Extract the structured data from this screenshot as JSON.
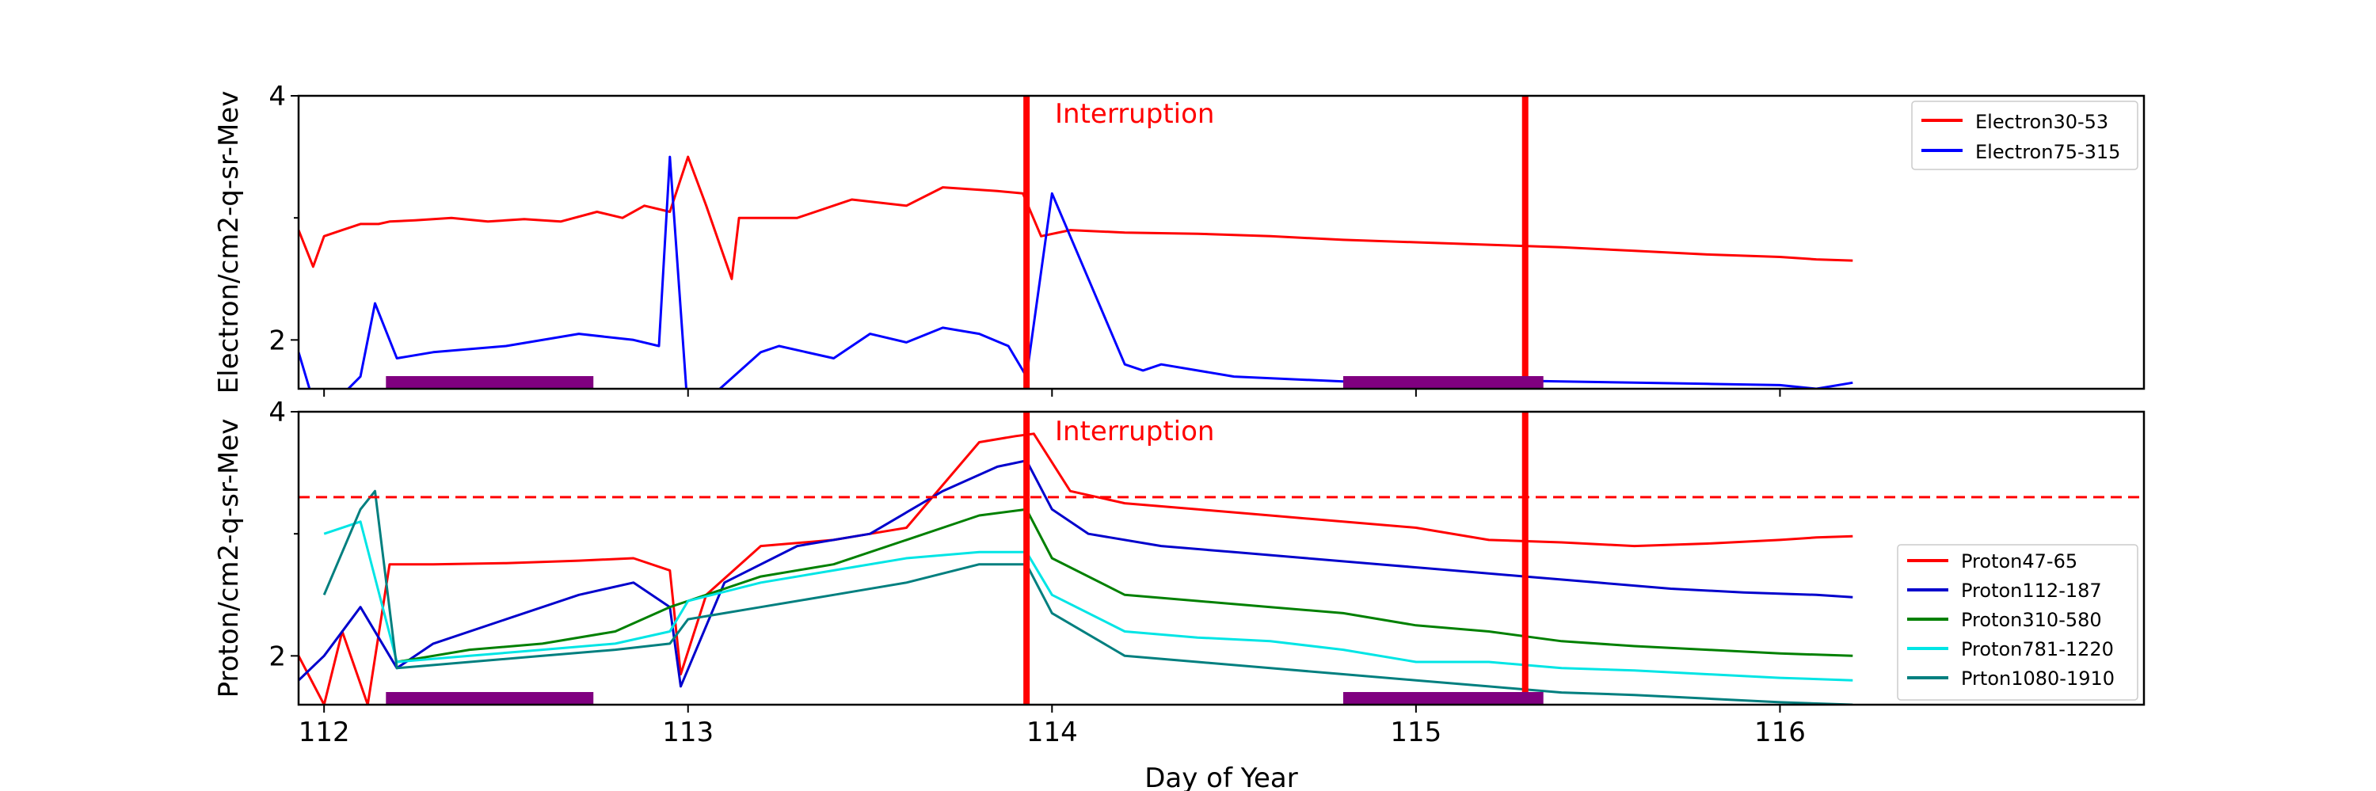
{
  "chart_data": {
    "type": "line",
    "xlabel": "Day of Year",
    "xlim": [
      111.93,
      117.0
    ],
    "xticks": [
      112,
      113,
      114,
      115,
      116
    ],
    "colors": {
      "Electron30-53": "#ff0000",
      "Electron75-315": "#0000ff",
      "Proton47-65": "#ff0000",
      "Proton112-187": "#0000cc",
      "Proton310-580": "#008000",
      "Proton781-1220": "#00e5e5",
      "Prton1080-1910": "#007f7f",
      "interruption": "#ff0000",
      "bar": "#800080"
    },
    "interruption_lines": [
      113.93,
      115.3
    ],
    "bars": [
      [
        112.17,
        112.74
      ],
      [
        114.8,
        115.35
      ]
    ],
    "panels": [
      {
        "id": "electron",
        "ylabel": "Electron/cm2-q-sr-Mev",
        "ylim": [
          1.6,
          4
        ],
        "yticks": [
          2,
          4
        ],
        "annotation": "Interruption",
        "legend_position": "upper-right",
        "series": [
          {
            "name": "Electron30-53",
            "x": [
              111.93,
              111.97,
              112.0,
              112.05,
              112.1,
              112.15,
              112.18,
              112.25,
              112.35,
              112.45,
              112.55,
              112.65,
              112.75,
              112.82,
              112.88,
              112.95,
              113.0,
              113.05,
              113.12,
              113.14,
              113.18,
              113.3,
              113.45,
              113.6,
              113.7,
              113.85,
              113.92,
              113.97,
              114.05,
              114.2,
              114.4,
              114.6,
              114.8,
              115.0,
              115.2,
              115.4,
              115.6,
              115.8,
              116.0,
              116.1,
              116.2
            ],
            "y": [
              2.9,
              2.6,
              2.85,
              2.9,
              2.95,
              2.95,
              2.97,
              2.98,
              3.0,
              2.97,
              2.99,
              2.97,
              3.05,
              3.0,
              3.1,
              3.05,
              3.5,
              3.1,
              2.5,
              3.0,
              3.0,
              3.0,
              3.15,
              3.1,
              3.25,
              3.22,
              3.2,
              2.85,
              2.9,
              2.88,
              2.87,
              2.85,
              2.82,
              2.8,
              2.78,
              2.76,
              2.73,
              2.7,
              2.68,
              2.66,
              2.65
            ]
          },
          {
            "name": "Electron75-315",
            "x": [
              111.93,
              111.96,
              112.0,
              112.05,
              112.1,
              112.14,
              112.2,
              112.3,
              112.5,
              112.7,
              112.85,
              112.92,
              112.95,
              113.0,
              113.05,
              113.2,
              113.25,
              113.4,
              113.5,
              113.6,
              113.7,
              113.8,
              113.88,
              113.93,
              114.0,
              114.1,
              114.2,
              114.25,
              114.3,
              114.5,
              114.8,
              115.0,
              115.2,
              115.4,
              115.6,
              115.8,
              116.0,
              116.1,
              116.2
            ],
            "y": [
              1.9,
              1.6,
              1.5,
              1.55,
              1.7,
              2.3,
              1.85,
              1.9,
              1.95,
              2.05,
              2.0,
              1.95,
              3.5,
              1.4,
              1.5,
              1.9,
              1.95,
              1.85,
              2.05,
              1.98,
              2.1,
              2.05,
              1.95,
              1.7,
              3.2,
              2.5,
              1.8,
              1.75,
              1.8,
              1.7,
              1.66,
              1.68,
              1.67,
              1.66,
              1.65,
              1.64,
              1.63,
              1.6,
              1.65
            ]
          }
        ]
      },
      {
        "id": "proton",
        "ylabel": "Proton/cm2-q-sr-Mev",
        "ylim": [
          1.6,
          4
        ],
        "yticks": [
          2,
          4
        ],
        "annotation": "Interruption",
        "reference_level": 3.3,
        "legend_position": "lower-right",
        "series": [
          {
            "name": "Proton47-65",
            "x": [
              111.93,
              112.0,
              112.05,
              112.12,
              112.18,
              112.3,
              112.5,
              112.7,
              112.85,
              112.95,
              112.98,
              113.05,
              113.2,
              113.4,
              113.5,
              113.6,
              113.7,
              113.8,
              113.9,
              113.95,
              114.05,
              114.2,
              114.4,
              114.6,
              114.8,
              115.0,
              115.2,
              115.4,
              115.6,
              115.8,
              116.0,
              116.1,
              116.2
            ],
            "y": [
              2.0,
              1.6,
              2.2,
              1.6,
              2.75,
              2.75,
              2.76,
              2.78,
              2.8,
              2.7,
              1.85,
              2.5,
              2.9,
              2.95,
              3.0,
              3.05,
              3.4,
              3.75,
              3.8,
              3.82,
              3.35,
              3.25,
              3.2,
              3.15,
              3.1,
              3.05,
              2.95,
              2.93,
              2.9,
              2.92,
              2.95,
              2.97,
              2.98
            ]
          },
          {
            "name": "Proton112-187",
            "x": [
              111.93,
              112.0,
              112.1,
              112.2,
              112.3,
              112.5,
              112.7,
              112.85,
              112.95,
              112.98,
              113.1,
              113.3,
              113.5,
              113.7,
              113.85,
              113.93,
              114.0,
              114.1,
              114.3,
              114.5,
              114.7,
              114.9,
              115.1,
              115.3,
              115.5,
              115.7,
              115.9,
              116.1,
              116.2
            ],
            "y": [
              1.8,
              2.0,
              2.4,
              1.9,
              2.1,
              2.3,
              2.5,
              2.6,
              2.4,
              1.75,
              2.6,
              2.9,
              3.0,
              3.35,
              3.55,
              3.6,
              3.2,
              3.0,
              2.9,
              2.85,
              2.8,
              2.75,
              2.7,
              2.65,
              2.6,
              2.55,
              2.52,
              2.5,
              2.48
            ]
          },
          {
            "name": "Proton310-580",
            "x": [
              112.2,
              112.4,
              112.6,
              112.8,
              112.95,
              113.0,
              113.2,
              113.4,
              113.6,
              113.8,
              113.93,
              114.0,
              114.2,
              114.4,
              114.6,
              114.8,
              115.0,
              115.2,
              115.4,
              115.6,
              115.8,
              116.0,
              116.2
            ],
            "y": [
              1.95,
              2.05,
              2.1,
              2.2,
              2.4,
              2.45,
              2.65,
              2.75,
              2.95,
              3.15,
              3.2,
              2.8,
              2.5,
              2.45,
              2.4,
              2.35,
              2.25,
              2.2,
              2.12,
              2.08,
              2.05,
              2.02,
              2.0
            ]
          },
          {
            "name": "Proton781-1220",
            "x": [
              112.0,
              112.1,
              112.2,
              112.4,
              112.6,
              112.8,
              112.95,
              113.0,
              113.2,
              113.4,
              113.6,
              113.8,
              113.93,
              114.0,
              114.2,
              114.4,
              114.6,
              114.8,
              115.0,
              115.2,
              115.4,
              115.6,
              115.8,
              116.0,
              116.2
            ],
            "y": [
              3.0,
              3.1,
              1.95,
              2.0,
              2.05,
              2.1,
              2.2,
              2.45,
              2.6,
              2.7,
              2.8,
              2.85,
              2.85,
              2.5,
              2.2,
              2.15,
              2.12,
              2.05,
              1.95,
              1.95,
              1.9,
              1.88,
              1.85,
              1.82,
              1.8
            ]
          },
          {
            "name": "Prton1080-1910",
            "x": [
              112.0,
              112.1,
              112.14,
              112.2,
              112.4,
              112.6,
              112.8,
              112.95,
              113.0,
              113.2,
              113.4,
              113.6,
              113.8,
              113.93,
              114.0,
              114.2,
              114.4,
              114.6,
              114.8,
              115.0,
              115.2,
              115.4,
              115.6,
              115.8,
              116.0,
              116.2
            ],
            "y": [
              2.5,
              3.2,
              3.35,
              1.9,
              1.95,
              2.0,
              2.05,
              2.1,
              2.3,
              2.4,
              2.5,
              2.6,
              2.75,
              2.75,
              2.35,
              2.0,
              1.95,
              1.9,
              1.85,
              1.8,
              1.75,
              1.7,
              1.68,
              1.65,
              1.62,
              1.6
            ]
          }
        ]
      }
    ]
  }
}
